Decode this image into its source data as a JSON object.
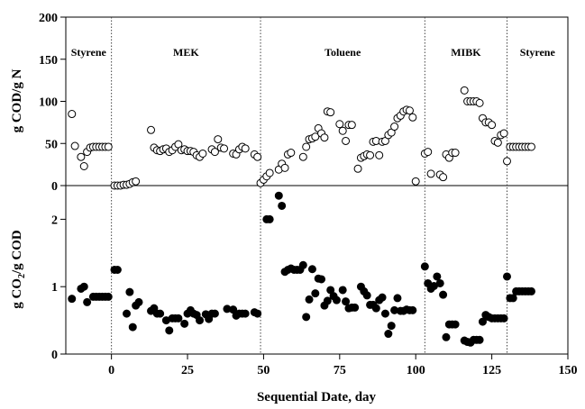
{
  "chart_data": [
    {
      "type": "scatter",
      "panel": "top",
      "xlabel": "",
      "ylabel": "g COD/g N",
      "xlim": [
        -15,
        150
      ],
      "ylim": [
        0,
        200
      ],
      "yticks": [
        "0",
        "50",
        "100",
        "150",
        "200"
      ],
      "grid": false,
      "marker": "open-circle",
      "phase_boundaries": [
        0,
        49,
        103,
        130
      ],
      "phase_labels": [
        "Styrene",
        "MEK",
        "Toluene",
        "MIBK",
        "Styrene"
      ],
      "series": [
        {
          "x": [
            -13,
            -12,
            -10,
            -9,
            -8,
            -7,
            -6,
            -5,
            -4,
            -3,
            -2,
            -1,
            1,
            2,
            3,
            4,
            5,
            6,
            7,
            8,
            13,
            14,
            15,
            16,
            17,
            18,
            19,
            20,
            21,
            22,
            23,
            24,
            25,
            26,
            27,
            28,
            29,
            30,
            33,
            34,
            35,
            36,
            37,
            40,
            41,
            42,
            43,
            44,
            47,
            48,
            49,
            50,
            51,
            52,
            55,
            56,
            57,
            58,
            59,
            63,
            64,
            65,
            66,
            67,
            68,
            69,
            70,
            71,
            72,
            75,
            76,
            77,
            78,
            79,
            81,
            82,
            83,
            84,
            85,
            86,
            87,
            88,
            89,
            90,
            91,
            92,
            93,
            94,
            95,
            96,
            97,
            98,
            99,
            100,
            103,
            104,
            105,
            108,
            109,
            110,
            111,
            112,
            113,
            116,
            117,
            118,
            119,
            120,
            121,
            122,
            123,
            124,
            125,
            126,
            127,
            128,
            129,
            130,
            131,
            132,
            133,
            134,
            135,
            136,
            137,
            138
          ],
          "y": [
            85,
            47,
            34,
            23,
            40,
            45,
            46,
            46,
            46,
            46,
            46,
            46,
            0,
            0,
            0,
            1,
            1,
            2,
            4,
            5,
            66,
            45,
            42,
            41,
            43,
            44,
            40,
            42,
            46,
            49,
            42,
            43,
            41,
            41,
            40,
            36,
            34,
            38,
            43,
            40,
            55,
            45,
            44,
            38,
            37,
            43,
            46,
            44,
            37,
            34,
            3,
            7,
            11,
            15,
            19,
            26,
            21,
            37,
            39,
            34,
            46,
            55,
            56,
            58,
            68,
            62,
            57,
            88,
            87,
            73,
            65,
            53,
            72,
            72,
            20,
            33,
            35,
            37,
            36,
            52,
            53,
            36,
            52,
            53,
            60,
            63,
            70,
            80,
            83,
            88,
            90,
            89,
            81,
            5,
            38,
            40,
            14,
            13,
            10,
            37,
            33,
            39,
            39,
            113,
            100,
            100,
            100,
            100,
            98,
            80,
            75,
            75,
            72,
            53,
            51,
            60,
            62,
            29,
            46,
            46,
            46,
            46,
            46,
            46,
            46,
            46
          ]
        }
      ]
    },
    {
      "type": "scatter",
      "panel": "bottom",
      "xlabel": "Sequential Date, day",
      "ylabel_parts": [
        "g CO",
        "2",
        "/g COD"
      ],
      "xlim": [
        -15,
        150
      ],
      "ylim": [
        0,
        2.5
      ],
      "xticks": [
        "0",
        "25",
        "50",
        "75",
        "100",
        "125",
        "150"
      ],
      "yticks": [
        "0",
        "1",
        "2"
      ],
      "grid": false,
      "marker": "filled-circle",
      "phase_boundaries": [
        0,
        49,
        103,
        130
      ],
      "series": [
        {
          "x": [
            -13,
            -10,
            -9,
            -8,
            -6,
            -5,
            -4,
            -3,
            -2,
            -1,
            1,
            2,
            5,
            6,
            7,
            8,
            9,
            13,
            14,
            15,
            16,
            18,
            19,
            20,
            21,
            22,
            24,
            25,
            26,
            27,
            28,
            29,
            31,
            32,
            33,
            34,
            38,
            40,
            41,
            42,
            43,
            44,
            47,
            48,
            51,
            52,
            55,
            56,
            57,
            58,
            59,
            60,
            61,
            62,
            63,
            64,
            65,
            66,
            67,
            68,
            69,
            70,
            71,
            72,
            73,
            74,
            76,
            77,
            78,
            79,
            80,
            82,
            83,
            84,
            85,
            86,
            87,
            88,
            89,
            90,
            91,
            92,
            93,
            94,
            95,
            96,
            97,
            98,
            99,
            103,
            104,
            105,
            106,
            107,
            108,
            109,
            110,
            111,
            112,
            113,
            116,
            117,
            118,
            119,
            120,
            121,
            122,
            123,
            124,
            125,
            126,
            127,
            128,
            129,
            130,
            131,
            132,
            133,
            134,
            135,
            136,
            137,
            138
          ],
          "y": [
            0.82,
            0.97,
            1.0,
            0.77,
            0.85,
            0.85,
            0.85,
            0.85,
            0.85,
            0.85,
            1.25,
            1.25,
            0.6,
            0.92,
            0.4,
            0.72,
            0.77,
            0.64,
            0.68,
            0.6,
            0.6,
            0.5,
            0.35,
            0.53,
            0.53,
            0.53,
            0.45,
            0.6,
            0.65,
            0.6,
            0.58,
            0.5,
            0.59,
            0.52,
            0.6,
            0.6,
            0.67,
            0.66,
            0.57,
            0.6,
            0.6,
            0.6,
            0.62,
            0.6,
            2.0,
            2.0,
            2.35,
            2.2,
            1.22,
            1.25,
            1.27,
            1.25,
            1.25,
            1.25,
            1.32,
            0.55,
            0.81,
            1.26,
            0.9,
            1.12,
            1.11,
            0.72,
            0.79,
            0.95,
            0.86,
            0.8,
            0.95,
            0.78,
            0.68,
            0.69,
            0.69,
            1.0,
            0.93,
            0.87,
            0.73,
            0.73,
            0.68,
            0.8,
            0.84,
            0.6,
            0.3,
            0.42,
            0.65,
            0.83,
            0.64,
            0.64,
            0.66,
            0.65,
            0.65,
            1.3,
            1.05,
            0.97,
            1.01,
            1.15,
            1.05,
            0.88,
            0.25,
            0.44,
            0.44,
            0.44,
            0.2,
            0.18,
            0.17,
            0.21,
            0.21,
            0.21,
            0.48,
            0.58,
            0.55,
            0.53,
            0.53,
            0.53,
            0.53,
            0.53,
            1.15,
            0.83,
            0.83,
            0.93,
            0.93,
            0.93,
            0.93,
            0.93,
            0.93
          ]
        }
      ]
    }
  ]
}
